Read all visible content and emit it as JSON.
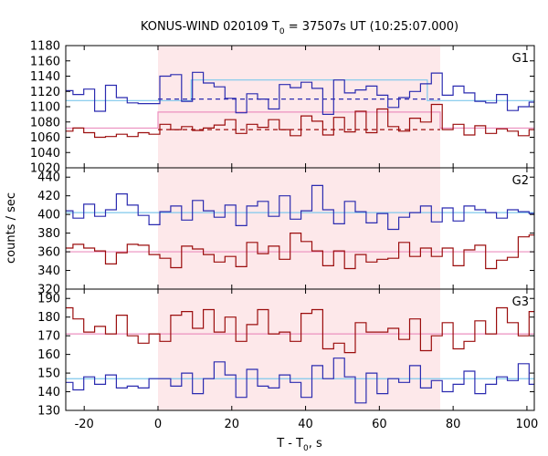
{
  "figure": {
    "title_main": "KONUS-WIND 020109 T",
    "title_sub": "0",
    "title_rest": " = 37507s UT (10:25:07.000)",
    "xlabel_main": "T - T",
    "xlabel_sub": "0",
    "xlabel_rest": ", s",
    "ylabel": "counts / sec"
  },
  "colors": {
    "blue": "#2b2bb0",
    "red": "#9b0d0d",
    "blue_bg": "#7fc8ec",
    "red_bg": "#ec8fbf",
    "highlight": "#fde8ea"
  },
  "chart_data": [
    {
      "type": "line",
      "panel": "G1",
      "label": "G1",
      "xlim": [
        -25,
        102
      ],
      "ylim": [
        1020,
        1180
      ],
      "xticks": [
        -20,
        0,
        20,
        40,
        60,
        80,
        100
      ],
      "yticks": [
        1020,
        1040,
        1060,
        1080,
        1100,
        1120,
        1140,
        1160,
        1180
      ],
      "x_step_start": -26,
      "x_step": 2.944,
      "highlight_interval": [
        0,
        76.5
      ],
      "series": [
        {
          "color": "blue",
          "values": [
            1121,
            1116,
            1123,
            1094,
            1128,
            1112,
            1105,
            1104,
            1104,
            1140,
            1142,
            1107,
            1145,
            1131,
            1126,
            1111,
            1092,
            1117,
            1110,
            1097,
            1129,
            1125,
            1132,
            1124,
            1090,
            1135,
            1118,
            1122,
            1127,
            1115,
            1099,
            1112,
            1120,
            1130,
            1144,
            1115,
            1127,
            1118,
            1107,
            1105,
            1116,
            1095,
            1100,
            1106
          ]
        },
        {
          "color": "red",
          "values": [
            1068,
            1072,
            1066,
            1060,
            1061,
            1064,
            1061,
            1066,
            1064,
            1077,
            1070,
            1074,
            1069,
            1072,
            1076,
            1083,
            1065,
            1077,
            1073,
            1083,
            1070,
            1062,
            1088,
            1081,
            1063,
            1086,
            1067,
            1094,
            1066,
            1097,
            1074,
            1068,
            1085,
            1080,
            1103,
            1070,
            1077,
            1063,
            1075,
            1065,
            1071,
            1068,
            1062,
            1070
          ]
        }
      ],
      "background": [
        {
          "color": "blue_bg",
          "segments": [
            [
              -25,
              9,
              1108
            ],
            [
              9,
              73,
              1135
            ],
            [
              73,
              102,
              1108
            ]
          ]
        },
        {
          "color": "red_bg",
          "segments": [
            [
              -25,
              0,
              1072
            ],
            [
              0,
              76.5,
              1093
            ],
            [
              76.5,
              102,
              1072
            ]
          ]
        }
      ],
      "dashed": [
        {
          "color": "blue",
          "x": [
            0,
            76.5
          ],
          "y": 1110
        },
        {
          "color": "red",
          "x": [
            0,
            76.5
          ],
          "y": 1070
        }
      ]
    },
    {
      "type": "line",
      "panel": "G2",
      "label": "G2",
      "xlim": [
        -25,
        102
      ],
      "ylim": [
        320,
        450
      ],
      "xticks": [
        -20,
        0,
        20,
        40,
        60,
        80,
        100
      ],
      "yticks": [
        320,
        340,
        360,
        380,
        400,
        420,
        440
      ],
      "x_step_start": -26,
      "x_step": 2.944,
      "highlight_interval": [
        0,
        76.5
      ],
      "series": [
        {
          "color": "blue",
          "values": [
            404,
            396,
            411,
            398,
            405,
            422,
            410,
            399,
            389,
            403,
            409,
            394,
            415,
            404,
            397,
            410,
            388,
            409,
            414,
            398,
            420,
            395,
            404,
            431,
            405,
            390,
            414,
            403,
            391,
            401,
            384,
            397,
            402,
            409,
            392,
            407,
            393,
            409,
            405,
            402,
            396,
            405,
            403,
            401
          ]
        },
        {
          "color": "red",
          "values": [
            364,
            368,
            364,
            361,
            347,
            359,
            368,
            367,
            357,
            353,
            343,
            366,
            363,
            357,
            349,
            355,
            344,
            370,
            358,
            366,
            352,
            380,
            371,
            361,
            345,
            361,
            342,
            357,
            349,
            352,
            353,
            370,
            355,
            364,
            355,
            364,
            345,
            362,
            367,
            342,
            351,
            354,
            376,
            378
          ]
        }
      ],
      "background": [
        {
          "color": "blue_bg",
          "segments": [
            [
              -25,
              102,
              402
            ]
          ]
        },
        {
          "color": "red_bg",
          "segments": [
            [
              -25,
              102,
              360
            ]
          ]
        }
      ],
      "dashed": []
    },
    {
      "type": "line",
      "panel": "G3",
      "label": "G3",
      "xlim": [
        -25,
        102
      ],
      "ylim": [
        130,
        195
      ],
      "xticks": [
        -20,
        0,
        20,
        40,
        60,
        80,
        100
      ],
      "yticks": [
        130,
        140,
        150,
        160,
        170,
        180,
        190
      ],
      "x_step_start": -26,
      "x_step": 2.944,
      "highlight_interval": [
        0,
        76.5
      ],
      "series": [
        {
          "color": "blue",
          "values": [
            145,
            141,
            148,
            144,
            149,
            142,
            143,
            142,
            147,
            147,
            143,
            150,
            139,
            147,
            156,
            149,
            137,
            152,
            143,
            142,
            149,
            145,
            137,
            154,
            147,
            158,
            148,
            134,
            150,
            139,
            147,
            145,
            154,
            142,
            146,
            140,
            144,
            151,
            139,
            144,
            148,
            146,
            155,
            144
          ]
        },
        {
          "color": "red",
          "values": [
            185,
            179,
            172,
            175,
            171,
            181,
            170,
            166,
            171,
            167,
            181,
            183,
            174,
            184,
            172,
            180,
            167,
            176,
            184,
            171,
            172,
            167,
            182,
            184,
            163,
            166,
            161,
            177,
            172,
            172,
            174,
            168,
            179,
            162,
            170,
            177,
            163,
            167,
            178,
            171,
            185,
            177,
            170,
            183
          ]
        }
      ],
      "background": [
        {
          "color": "blue_bg",
          "segments": [
            [
              -25,
              102,
              147
            ]
          ]
        },
        {
          "color": "red_bg",
          "segments": [
            [
              -25,
              102,
              171
            ]
          ]
        }
      ],
      "dashed": []
    }
  ]
}
